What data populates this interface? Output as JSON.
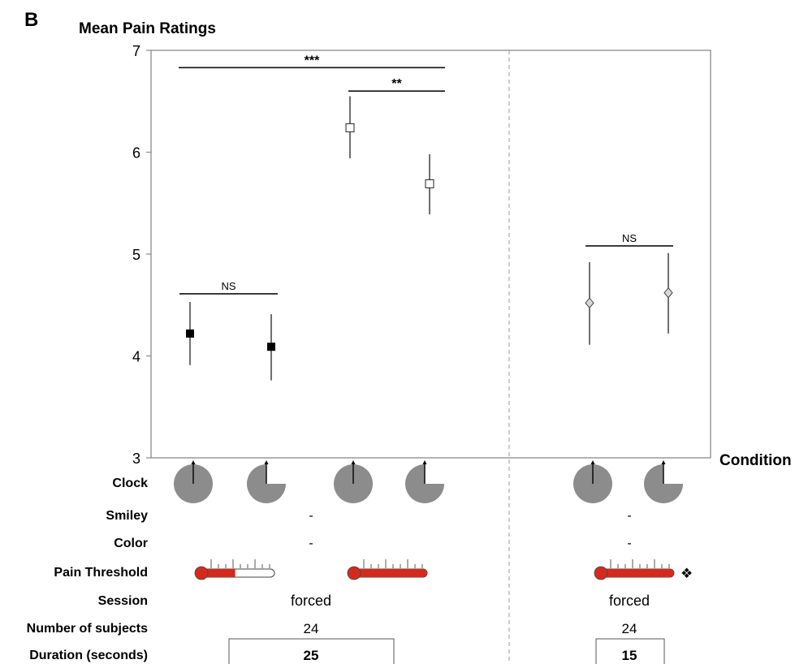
{
  "panel_label": "B",
  "chart_data": {
    "type": "scatter",
    "title": "Mean Pain Ratings",
    "xlabel": "Condition",
    "ylabel": "Mean Pain Ratings",
    "ylim": [
      3,
      7
    ],
    "yticks": [
      "3",
      "4",
      "5",
      "6",
      "7"
    ],
    "grid": false,
    "points": [
      {
        "condition": 1,
        "y": 4.22,
        "lower": 3.91,
        "upper": 4.53,
        "marker": "filled-square"
      },
      {
        "condition": 2,
        "y": 4.09,
        "lower": 3.76,
        "upper": 4.41,
        "marker": "filled-square"
      },
      {
        "condition": 3,
        "y": 6.24,
        "lower": 5.94,
        "upper": 6.55,
        "marker": "open-square"
      },
      {
        "condition": 4,
        "y": 5.69,
        "lower": 5.39,
        "upper": 5.98,
        "marker": "open-square"
      },
      {
        "condition": 5,
        "y": 4.52,
        "lower": 4.11,
        "upper": 4.92,
        "marker": "open-diamond"
      },
      {
        "condition": 6,
        "y": 4.62,
        "lower": 4.22,
        "upper": 5.01,
        "marker": "open-diamond"
      }
    ],
    "significance": [
      {
        "from": 1,
        "to": 4,
        "label": "***",
        "y": 6.83
      },
      {
        "from": 3,
        "to": 4,
        "label": "**",
        "y": 6.6
      },
      {
        "from": 1,
        "to": 2,
        "label": "NS",
        "y": 4.61
      },
      {
        "from": 5,
        "to": 6,
        "label": "NS",
        "y": 5.08
      }
    ],
    "separator_after_condition": 4
  },
  "table": {
    "row_labels": {
      "clock": "Clock",
      "smiley": "Smiley",
      "color": "Color",
      "pain_threshold": "Pain Threshold",
      "session": "Session",
      "subjects": "Number of subjects",
      "duration": "Duration (seconds)"
    },
    "clock": [
      "full",
      "three-quarter",
      "full",
      "three-quarter",
      "full",
      "three-quarter"
    ],
    "smiley": [
      "-",
      "-"
    ],
    "color": [
      "-",
      "-"
    ],
    "pain_threshold_fill": [
      0.45,
      1.0,
      1.0
    ],
    "pain_threshold_marker": "❖",
    "session": [
      "forced",
      "forced"
    ],
    "subjects": [
      "24",
      "24"
    ],
    "duration": [
      "25",
      "15"
    ],
    "colors": {
      "thermo_red": "#d42a1e",
      "clock_gray": "#8c8c8c",
      "axis_gray": "#8a8a8a"
    }
  }
}
